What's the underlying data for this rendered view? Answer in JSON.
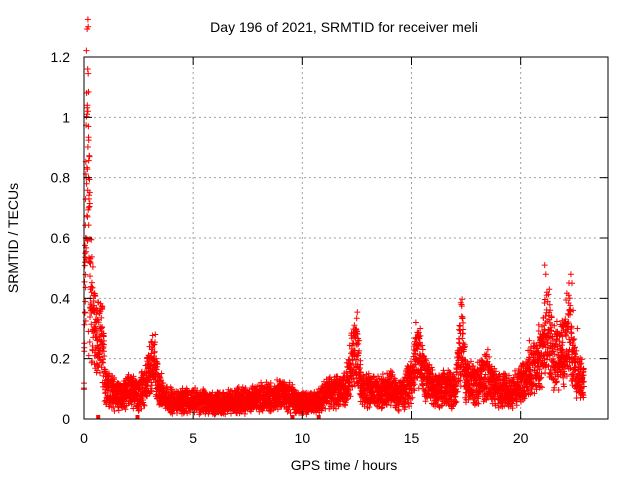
{
  "chart_data": {
    "type": "scatter",
    "title": "Day 196 of 2021, SRMTID for receiver meli",
    "xlabel": "GPS time / hours",
    "ylabel": "SRMTID / TECUs",
    "xlim": [
      0,
      24
    ],
    "ylim": [
      0,
      1.2
    ],
    "xticks": [
      0,
      5,
      10,
      15,
      20
    ],
    "yticks": [
      0,
      0.2,
      0.4,
      0.6,
      0.8,
      1,
      1.2
    ],
    "xtick_labels": [
      "0",
      "5",
      "10",
      "15",
      "20"
    ],
    "ytick_labels": [
      "0",
      "0.2",
      "0.4",
      "0.6",
      "0.8",
      "1",
      "1.2"
    ],
    "grid": true,
    "marker": "+",
    "color": "#ff0000",
    "data_end_hour": 22.9,
    "gap_markers_x": [
      0.65,
      2.45,
      9.55,
      10.75
    ],
    "profile": [
      [
        0.0,
        0.1
      ],
      [
        0.05,
        0.55
      ],
      [
        0.1,
        0.8
      ],
      [
        0.15,
        0.95
      ],
      [
        0.2,
        0.9
      ],
      [
        0.25,
        0.6
      ],
      [
        0.3,
        0.4
      ],
      [
        0.4,
        0.35
      ],
      [
        0.5,
        0.3
      ],
      [
        0.6,
        0.25
      ],
      [
        0.8,
        0.3
      ],
      [
        1.0,
        0.1
      ],
      [
        1.5,
        0.08
      ],
      [
        2.0,
        0.09
      ],
      [
        2.5,
        0.08
      ],
      [
        3.0,
        0.15
      ],
      [
        3.2,
        0.22
      ],
      [
        3.4,
        0.1
      ],
      [
        4.0,
        0.06
      ],
      [
        5.0,
        0.06
      ],
      [
        6.0,
        0.05
      ],
      [
        7.0,
        0.06
      ],
      [
        8.0,
        0.07
      ],
      [
        9.0,
        0.08
      ],
      [
        9.5,
        0.07
      ],
      [
        10.0,
        0.05
      ],
      [
        10.75,
        0.06
      ],
      [
        11.0,
        0.08
      ],
      [
        12.0,
        0.1
      ],
      [
        12.3,
        0.2
      ],
      [
        12.5,
        0.24
      ],
      [
        12.7,
        0.1
      ],
      [
        13.5,
        0.09
      ],
      [
        14.0,
        0.1
      ],
      [
        14.5,
        0.08
      ],
      [
        15.0,
        0.13
      ],
      [
        15.3,
        0.22
      ],
      [
        15.5,
        0.15
      ],
      [
        16.0,
        0.1
      ],
      [
        17.0,
        0.1
      ],
      [
        17.3,
        0.28
      ],
      [
        17.5,
        0.12
      ],
      [
        18.0,
        0.12
      ],
      [
        18.5,
        0.14
      ],
      [
        19.0,
        0.1
      ],
      [
        19.5,
        0.09
      ],
      [
        20.0,
        0.11
      ],
      [
        20.5,
        0.16
      ],
      [
        21.0,
        0.22
      ],
      [
        21.2,
        0.32
      ],
      [
        21.5,
        0.2
      ],
      [
        22.0,
        0.24
      ],
      [
        22.2,
        0.3
      ],
      [
        22.5,
        0.15
      ],
      [
        22.9,
        0.13
      ]
    ],
    "spike_points": [
      [
        0.15,
        1.04
      ],
      [
        0.18,
        1.02
      ],
      [
        0.2,
        0.97
      ],
      [
        0.25,
        0.87
      ],
      [
        0.1,
        0.8
      ],
      [
        0.12,
        0.78
      ],
      [
        0.22,
        0.7
      ],
      [
        0.16,
        0.67
      ],
      [
        0.05,
        0.55
      ],
      [
        0.1,
        0.53
      ],
      [
        0.08,
        0.6
      ],
      [
        0.3,
        0.43
      ],
      [
        0.35,
        0.42
      ],
      [
        0.28,
        0.37
      ],
      [
        0.2,
        0.29
      ],
      [
        0.22,
        0.21
      ],
      [
        0.5,
        0.32
      ],
      [
        0.7,
        0.35
      ],
      [
        0.75,
        0.3
      ],
      [
        0.6,
        0.26
      ],
      [
        3.0,
        0.24
      ],
      [
        3.1,
        0.23
      ],
      [
        12.5,
        0.29
      ],
      [
        12.6,
        0.26
      ],
      [
        15.2,
        0.32
      ],
      [
        15.4,
        0.3
      ],
      [
        17.3,
        0.34
      ],
      [
        17.2,
        0.31
      ],
      [
        18.5,
        0.23
      ],
      [
        20.4,
        0.26
      ],
      [
        21.1,
        0.51
      ],
      [
        21.15,
        0.48
      ],
      [
        21.2,
        0.42
      ],
      [
        21.3,
        0.33
      ],
      [
        22.3,
        0.48
      ],
      [
        22.35,
        0.45
      ],
      [
        22.25,
        0.4
      ],
      [
        22.4,
        0.36
      ],
      [
        22.6,
        0.3
      ],
      [
        20.8,
        0.22
      ]
    ]
  }
}
